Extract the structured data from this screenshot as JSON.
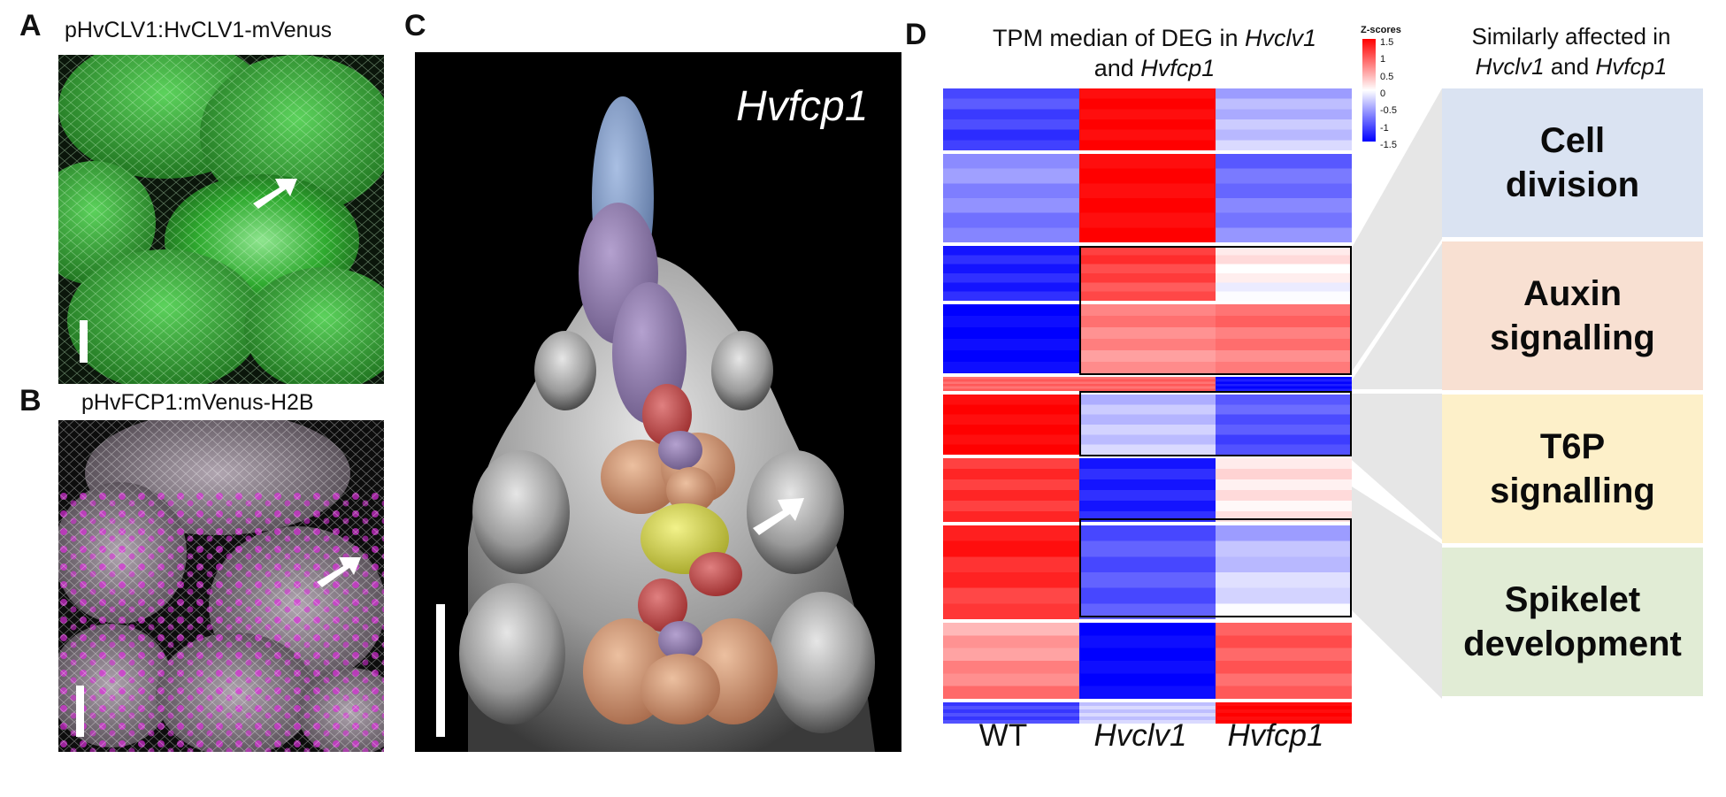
{
  "panels": {
    "A": {
      "letter": "A",
      "title": "pHvCLV1:HvCLV1-mVenus"
    },
    "B": {
      "letter": "B",
      "title": "pHvFCP1:mVenus-H2B"
    },
    "C": {
      "letter": "C",
      "label": "Hvfcp1"
    },
    "D": {
      "letter": "D",
      "title_line1_prefix": "TPM median of DEG in ",
      "title_line1_italic": "Hvclv1",
      "title_line2_prefix": "and ",
      "title_line2_italic": "Hvfcp1",
      "legend_title": "Z-scores",
      "legend_ticks": [
        "1.5",
        "1",
        "0.5",
        "0",
        "-0.5",
        "-1",
        "-1.5"
      ],
      "columns": [
        "WT",
        "Hvclv1",
        "Hvfcp1"
      ],
      "side_title_line1": "Similarly affected in",
      "side_title_line2_a": "Hvclv1",
      "side_title_line2_b": " and ",
      "side_title_line2_c": "Hvfcp1",
      "categories": [
        {
          "line1": "Cell",
          "line2": "division",
          "color": "#dae3f2"
        },
        {
          "line1": "Auxin",
          "line2": "signalling",
          "color": "#f8e0d2"
        },
        {
          "line1": "T6P",
          "line2": "signalling",
          "color": "#fdf0c9"
        },
        {
          "line1": "Spikelet",
          "line2": "development",
          "color": "#e1ecd5"
        }
      ]
    }
  },
  "colors": {
    "high": "#ff0000",
    "mid": "#ffffff",
    "low": "#0000ff",
    "gfp": "#2fbf2f",
    "magenta": "#e02ee0"
  }
}
